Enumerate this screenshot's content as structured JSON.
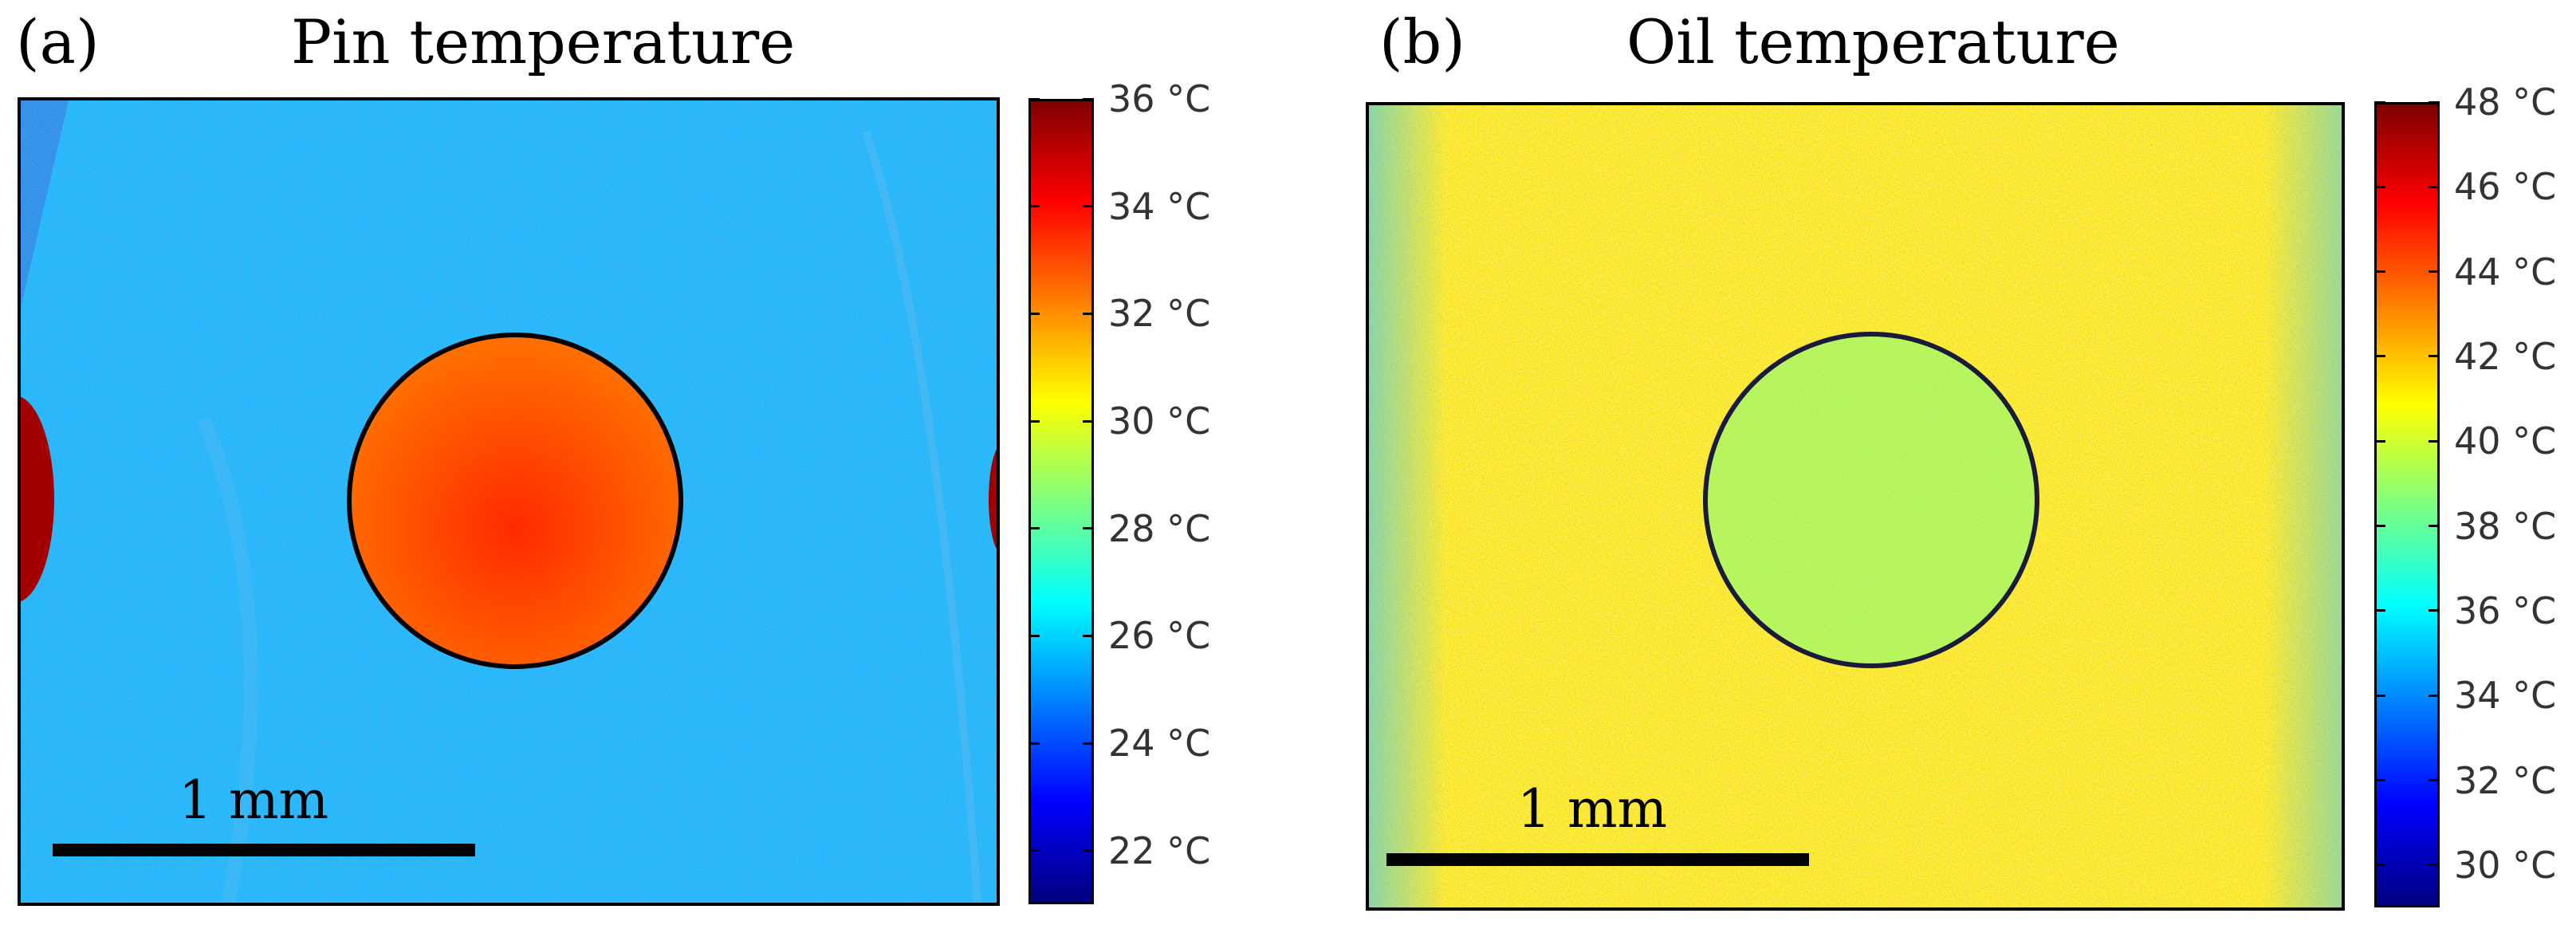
{
  "chart_data": [
    {
      "type": "heatmap",
      "panel_label": "(a)",
      "title": "Pin temperature",
      "unit": "°C",
      "colormap": "jet",
      "colorbar_range": [
        21,
        36
      ],
      "colorbar_ticks": [
        36,
        34,
        32,
        30,
        28,
        26,
        24,
        22
      ],
      "colorbar_tick_labels": [
        "36 °C",
        "34 °C",
        "32 °C",
        "30 °C",
        "28 °C",
        "26 °C",
        "24 °C",
        "22 °C"
      ],
      "background_temperature": 25.5,
      "circle_temperature": 32.5,
      "circle_center_temperature": 33.5,
      "edge_feature_temperature": 35.5,
      "scale_bar_label": "1 mm"
    },
    {
      "type": "heatmap",
      "panel_label": "(b)",
      "title": "Oil temperature",
      "unit": "°C",
      "colormap": "jet",
      "colorbar_range": [
        29,
        48
      ],
      "colorbar_ticks": [
        48,
        46,
        44,
        42,
        40,
        38,
        36,
        34,
        32,
        30
      ],
      "colorbar_tick_labels": [
        "48 °C",
        "46 °C",
        "44 °C",
        "42 °C",
        "40 °C",
        "38 °C",
        "36 °C",
        "34 °C",
        "32 °C",
        "30 °C"
      ],
      "background_temperature": 41.5,
      "circle_temperature": 38.5,
      "scale_bar_label": "1 mm"
    }
  ],
  "colors": {
    "circle_outline_a": "#000000",
    "circle_outline_b": "#1a1a3a"
  }
}
